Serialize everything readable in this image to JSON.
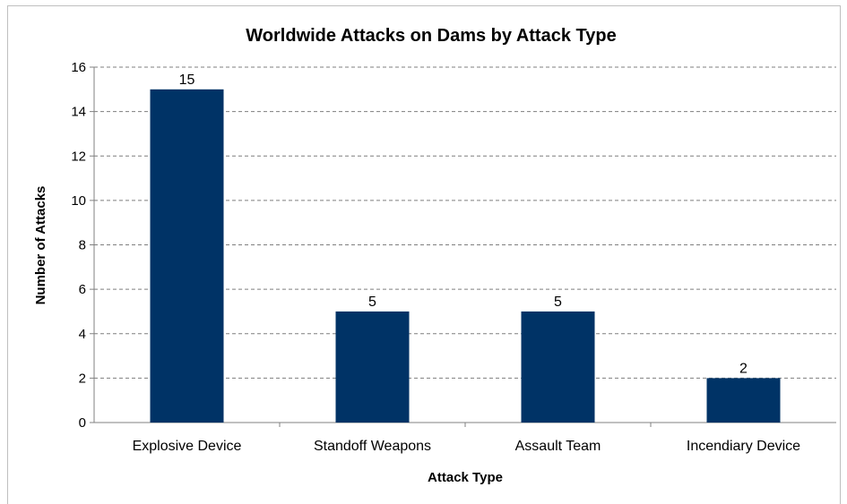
{
  "chart_data": {
    "type": "bar",
    "title": "Worldwide Attacks on Dams by Attack Type",
    "xlabel": "Attack Type",
    "ylabel": "Number of Attacks",
    "categories": [
      "Explosive Device",
      "Standoff Weapons",
      "Assault Team",
      "Incendiary Device"
    ],
    "values": [
      15,
      5,
      5,
      2
    ],
    "data_labels": [
      "15",
      "5",
      "5",
      "2"
    ],
    "ylim": [
      0,
      16
    ],
    "yticks": [
      "0",
      "2",
      "4",
      "6",
      "8",
      "10",
      "12",
      "14",
      "16"
    ],
    "grid": "horizontal dashed",
    "legend": "none",
    "bar_color": "#003366"
  }
}
